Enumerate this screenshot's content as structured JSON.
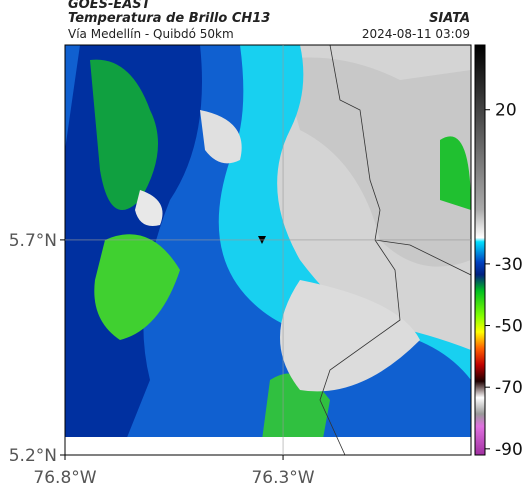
{
  "header": {
    "source": "GOES-EAST",
    "product": "Temperatura de Brillo CH13",
    "route": "Vía Medellín - Quibdó 50km",
    "agency": "SIATA",
    "timestamp": "2024-08-11 03:09"
  },
  "map": {
    "xlim": [
      -76.8,
      -75.869
    ],
    "ylim": [
      5.2,
      6.153
    ],
    "xticks": [
      {
        "value": -76.8,
        "label": "76.8°W"
      },
      {
        "value": -76.3,
        "label": "76.3°W"
      }
    ],
    "yticks": [
      {
        "value": 5.7,
        "label": "5.7°N"
      },
      {
        "value": 5.2,
        "label": "5.2°N"
      }
    ],
    "grid": true
  },
  "colorbar": {
    "clim": [
      -92,
      41
    ],
    "ticks": [
      20,
      -30,
      -50,
      -70,
      -90
    ]
  }
}
